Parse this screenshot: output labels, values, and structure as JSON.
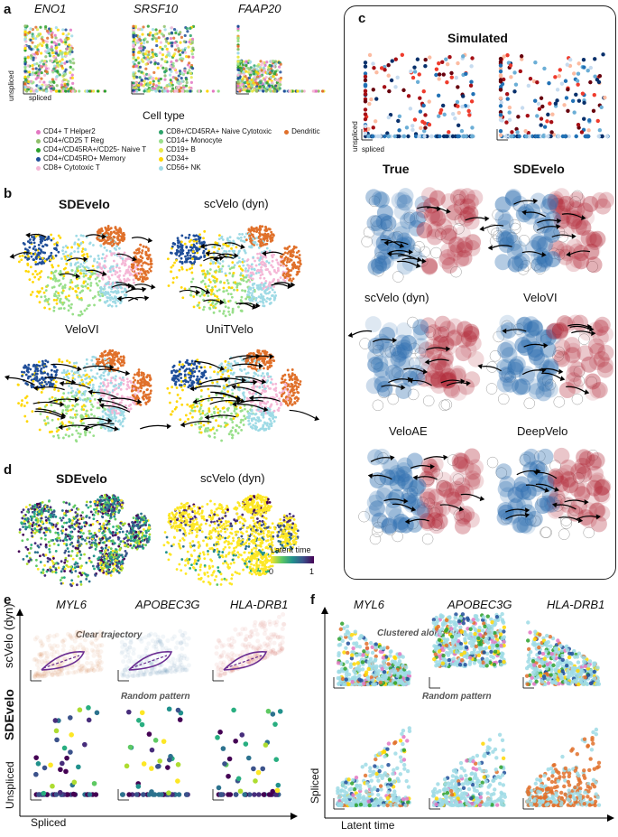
{
  "panels": {
    "a": "a",
    "b": "b",
    "c": "c",
    "d": "d",
    "e": "e",
    "f": "f"
  },
  "panel_a": {
    "genes": [
      "ENO1",
      "SRSF10",
      "FAAP20"
    ],
    "axis_x": "spliced",
    "axis_y": "unspliced",
    "xlabel": "Cell type",
    "legend": [
      {
        "label": "CD4+ T Helper2",
        "color": "#e377c2"
      },
      {
        "label": "CD4+/CD25 T Reg",
        "color": "#8fbf6a"
      },
      {
        "label": "CD4+/CD45RA+/CD25- Naive T",
        "color": "#2ca02c"
      },
      {
        "label": "CD4+/CD45RO+ Memory",
        "color": "#1f4e99"
      },
      {
        "label": "CD8+ Cytotoxic T",
        "color": "#f5b7d6"
      },
      {
        "label": "CD8+/CD45RA+ Naive Cytotoxic",
        "color": "#2ca26a"
      },
      {
        "label": "CD14+ Monocyte",
        "color": "#98df8a"
      },
      {
        "label": "CD19+ B",
        "color": "#e8e84a"
      },
      {
        "label": "CD34+",
        "color": "#ffd700"
      },
      {
        "label": "CD56+ NK",
        "color": "#9edae5"
      },
      {
        "label": "Dendritic",
        "color": "#e0702a"
      }
    ]
  },
  "panel_b": {
    "titles": [
      "SDEvelo",
      "scVelo (dyn)",
      "VeloVI",
      "UniTVelo"
    ]
  },
  "panel_c": {
    "title": "Simulated",
    "axis_x": "spliced",
    "axis_y": "unspliced",
    "titles": [
      "True",
      "SDEvelo",
      "scVelo (dyn)",
      "VeloVI",
      "VeloAE",
      "DeepVelo"
    ]
  },
  "panel_d": {
    "titles": [
      "SDEvelo",
      "scVelo (dyn)"
    ],
    "colorbar_label": "Latent time",
    "cb_min": "0",
    "cb_max": "1"
  },
  "panel_e": {
    "genes": [
      "MYL6",
      "APOBEC3G",
      "HLA-DRB1"
    ],
    "row_labels": [
      "scVelo (dyn)",
      "SDEvelo"
    ],
    "note_top": "Clear trajectory",
    "note_bottom": "Random pattern",
    "xlabel": "Spliced",
    "ylabel": "Unspliced"
  },
  "panel_f": {
    "genes": [
      "MYL6",
      "APOBEC3G",
      "HLA-DRB1"
    ],
    "note_top": "Clustered along time",
    "note_bottom": "Random pattern",
    "xlabel": "Latent time",
    "ylabel": "Spliced"
  },
  "colors": {
    "blue": "#2f6fb0",
    "red": "#b22b3a",
    "viridis_lo": "#440154",
    "viridis_hi": "#fde725"
  }
}
